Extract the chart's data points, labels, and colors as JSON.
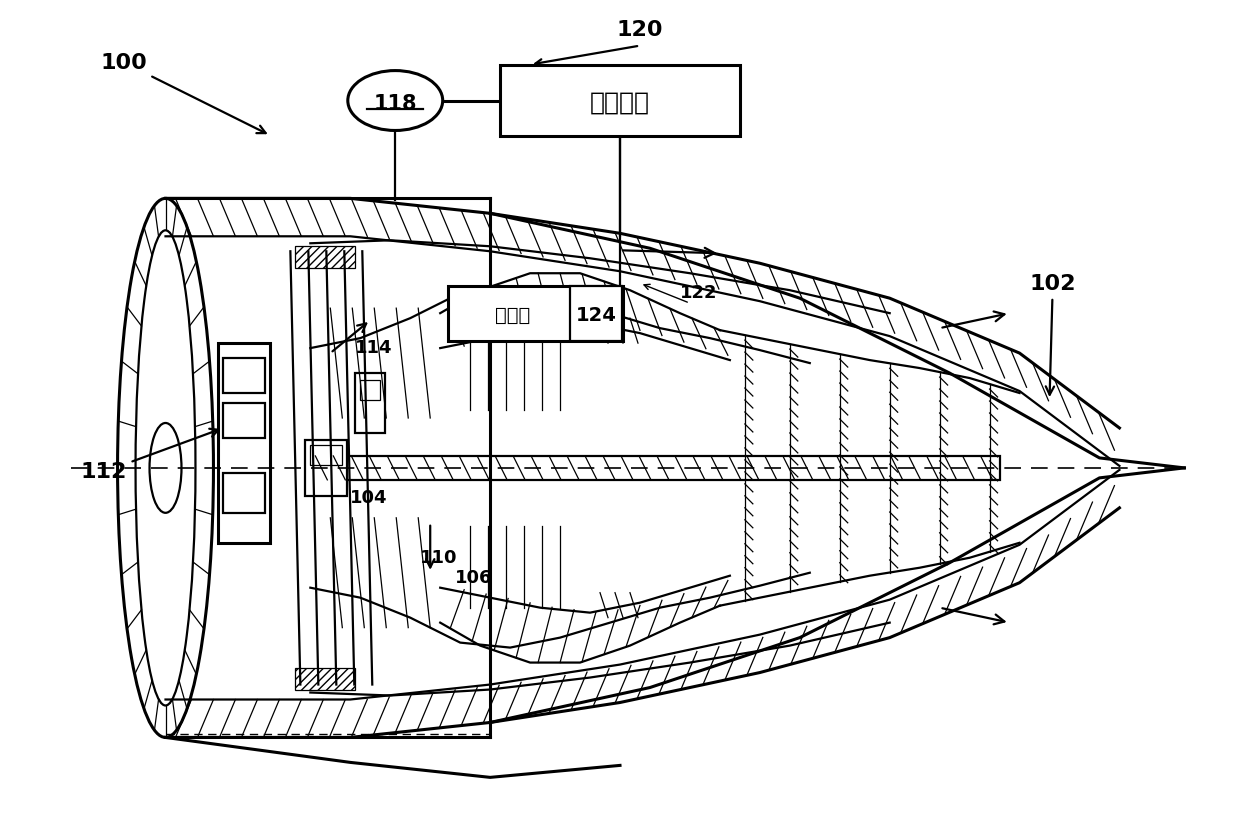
{
  "bg_color": "#ffffff",
  "line_color": "#000000",
  "control_box_label": "控制系统",
  "fuel_valve_label": "燃料阀",
  "label_fontsize": 16,
  "small_label_fontsize": 13
}
